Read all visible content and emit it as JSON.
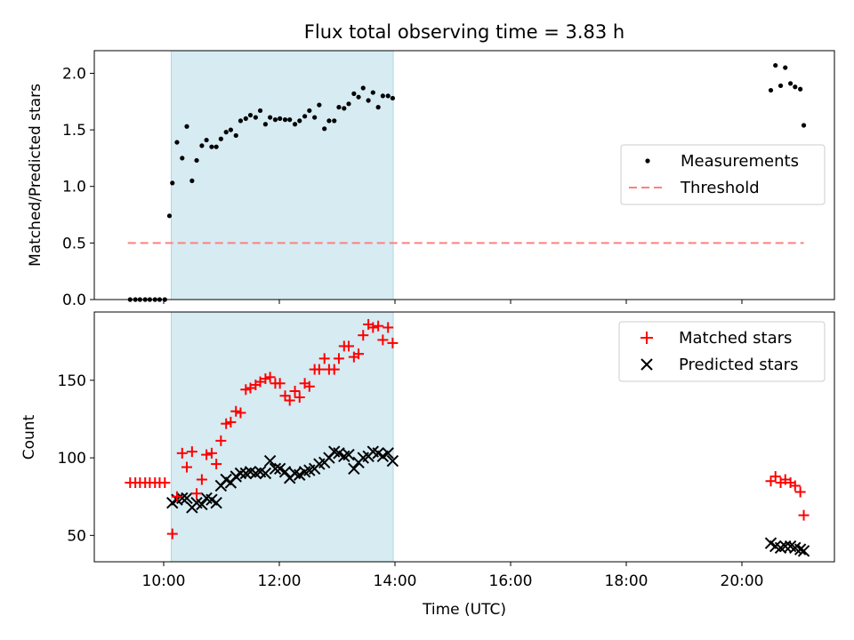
{
  "title": "Flux total observing time = 3.83 h",
  "xlabel": "Time (UTC)",
  "xticks": [
    {
      "hour": 10,
      "label": "10:00"
    },
    {
      "hour": 12,
      "label": "12:00"
    },
    {
      "hour": 14,
      "label": "14:00"
    },
    {
      "hour": 16,
      "label": "16:00"
    },
    {
      "hour": 18,
      "label": "18:00"
    },
    {
      "hour": 20,
      "label": "20:00"
    }
  ],
  "shaded_span": {
    "start_hour": 10.13,
    "end_hour": 13.97,
    "color": "#add8e6"
  },
  "colors": {
    "matched": "#ff0000",
    "predicted": "#000000",
    "threshold": "#ff7f7f",
    "measurements": "#000000"
  },
  "chart_data": [
    {
      "type": "scatter",
      "name": "ratio",
      "ylabel": "Matched/Predicted stars",
      "xlim": [
        8.8,
        21.6
      ],
      "ylim": [
        0,
        2.2
      ],
      "yticks": [
        0.0,
        0.5,
        1.0,
        1.5,
        2.0
      ],
      "ytick_labels": [
        "0.0",
        "0.5",
        "1.0",
        "1.5",
        "2.0"
      ],
      "legend_position": "center-right",
      "legend": {
        "measurements": "Measurements",
        "threshold": "Threshold"
      },
      "threshold": {
        "value": 0.5,
        "x_start": 9.38,
        "x_end": 21.07
      },
      "series": [
        {
          "name": "Measurements",
          "x": [
            9.42,
            9.51,
            9.59,
            9.68,
            9.76,
            9.85,
            9.93,
            10.02,
            10.1,
            10.15,
            10.23,
            10.32,
            10.4,
            10.49,
            10.57,
            10.66,
            10.74,
            10.83,
            10.91,
            10.99,
            11.08,
            11.16,
            11.25,
            11.33,
            11.42,
            11.5,
            11.59,
            11.67,
            11.76,
            11.84,
            11.93,
            12.01,
            12.1,
            12.18,
            12.27,
            12.35,
            12.44,
            12.52,
            12.61,
            12.69,
            12.78,
            12.86,
            12.95,
            13.03,
            13.12,
            13.2,
            13.29,
            13.37,
            13.45,
            13.54,
            13.62,
            13.71,
            13.79,
            13.88,
            13.96,
            20.5,
            20.58,
            20.67,
            20.75,
            20.84,
            20.92,
            21.01,
            21.07
          ],
          "y": [
            0,
            0,
            0,
            0,
            0,
            0,
            0,
            0,
            0.74,
            1.03,
            1.39,
            1.25,
            1.53,
            1.05,
            1.23,
            1.36,
            1.41,
            1.35,
            1.35,
            1.42,
            1.48,
            1.5,
            1.45,
            1.58,
            1.6,
            1.63,
            1.61,
            1.67,
            1.55,
            1.61,
            1.59,
            1.6,
            1.59,
            1.59,
            1.55,
            1.58,
            1.62,
            1.67,
            1.61,
            1.72,
            1.51,
            1.58,
            1.58,
            1.7,
            1.69,
            1.73,
            1.82,
            1.79,
            1.87,
            1.76,
            1.83,
            1.7,
            1.8,
            1.8,
            1.78,
            1.85,
            2.07,
            1.89,
            2.05,
            1.91,
            1.88,
            1.86,
            1.54
          ]
        }
      ]
    },
    {
      "type": "scatter",
      "name": "counts",
      "ylabel": "Count",
      "xlim": [
        8.8,
        21.6
      ],
      "ylim": [
        33,
        194
      ],
      "yticks": [
        50,
        100,
        150
      ],
      "ytick_labels": [
        "50",
        "100",
        "150"
      ],
      "legend_position": "top-right",
      "series": [
        {
          "name": "Matched stars",
          "marker": "plus",
          "x": [
            9.42,
            9.51,
            9.59,
            9.68,
            9.76,
            9.85,
            9.93,
            10.02,
            10.15,
            10.23,
            10.32,
            10.4,
            10.49,
            10.57,
            10.66,
            10.74,
            10.83,
            10.91,
            10.99,
            11.08,
            11.16,
            11.25,
            11.33,
            11.42,
            11.5,
            11.59,
            11.67,
            11.76,
            11.84,
            11.93,
            12.01,
            12.1,
            12.18,
            12.27,
            12.35,
            12.44,
            12.52,
            12.61,
            12.69,
            12.78,
            12.86,
            12.95,
            13.03,
            13.12,
            13.2,
            13.29,
            13.37,
            13.45,
            13.54,
            13.62,
            13.71,
            13.79,
            13.88,
            13.96,
            20.5,
            20.58,
            20.67,
            20.75,
            20.84,
            20.92,
            21.01,
            21.07
          ],
          "y": [
            84,
            84,
            84,
            84,
            84,
            84,
            84,
            84,
            51,
            75,
            103,
            94,
            104,
            77,
            86,
            102,
            103,
            96,
            111,
            122,
            123,
            130,
            129,
            144,
            145,
            147,
            149,
            151,
            152,
            148,
            148,
            140,
            137,
            143,
            139,
            148,
            146,
            157,
            157,
            164,
            157,
            157,
            164,
            172,
            172,
            165,
            167,
            179,
            186,
            184,
            185,
            176,
            184,
            174,
            85,
            88,
            84,
            86,
            84,
            82,
            78,
            63
          ]
        },
        {
          "name": "Predicted stars",
          "marker": "x",
          "x": [
            10.15,
            10.23,
            10.32,
            10.4,
            10.49,
            10.57,
            10.66,
            10.74,
            10.83,
            10.91,
            10.99,
            11.08,
            11.16,
            11.25,
            11.33,
            11.42,
            11.5,
            11.59,
            11.67,
            11.76,
            11.84,
            11.93,
            12.01,
            12.1,
            12.18,
            12.27,
            12.35,
            12.44,
            12.52,
            12.61,
            12.69,
            12.78,
            12.86,
            12.95,
            13.03,
            13.12,
            13.2,
            13.29,
            13.37,
            13.45,
            13.54,
            13.62,
            13.71,
            13.79,
            13.88,
            13.96,
            20.5,
            20.58,
            20.67,
            20.75,
            20.84,
            20.92,
            21.01,
            21.07
          ],
          "y": [
            71,
            73,
            74,
            74,
            68,
            71,
            70,
            74,
            73,
            71,
            82,
            86,
            84,
            88,
            90,
            90,
            91,
            90,
            91,
            90,
            98,
            93,
            93,
            91,
            87,
            90,
            89,
            91,
            92,
            93,
            96,
            97,
            100,
            104,
            103,
            101,
            102,
            93,
            97,
            100,
            101,
            104,
            103,
            101,
            103,
            98,
            45,
            43,
            42,
            43,
            43,
            42,
            41,
            40
          ]
        }
      ]
    }
  ]
}
